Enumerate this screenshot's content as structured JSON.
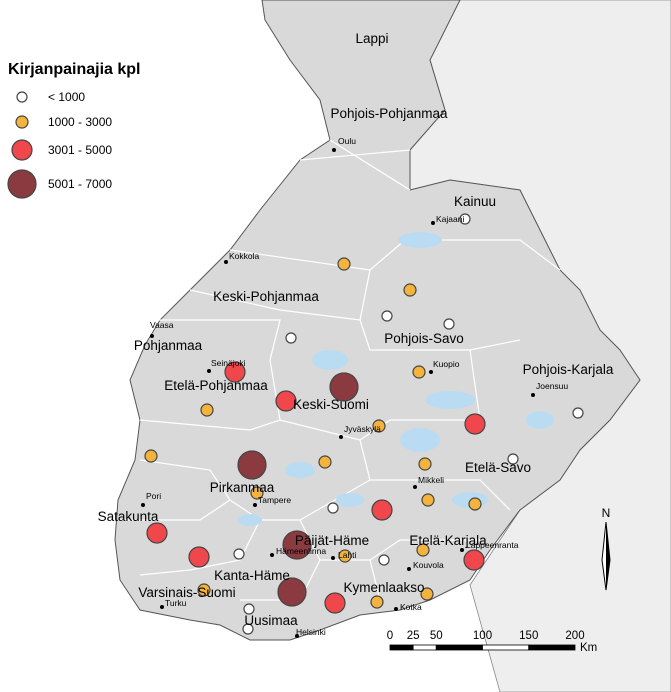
{
  "legend": {
    "title": "Kirjanpainajia kpl",
    "items": [
      "< 1000",
      "1000 - 3000",
      "3001 - 5000",
      "5001 - 7000"
    ]
  },
  "regions": [
    "Lappi",
    "Pohjois-Pohjanmaa",
    "Kainuu",
    "Keski-Pohjanmaa",
    "Pohjois-Savo",
    "Pohjanmaa",
    "Pohjois-Karjala",
    "Etelä-Pohjanmaa",
    "Keski-Suomi",
    "Etelä-Savo",
    "Pirkanmaa",
    "Satakunta",
    "Päijät-Häme",
    "Etelä-Karjala",
    "Kanta-Häme",
    "Kymenlaakso",
    "Varsinais-Suomi",
    "Uusimaa"
  ],
  "cities": [
    "Oulu",
    "Kajaani",
    "Kokkola",
    "Vaasa",
    "Seinäjoki",
    "Kuopio",
    "Joensuu",
    "Jyväskylä",
    "Pori",
    "Tampere",
    "Mikkeli",
    "Hämeenlinna",
    "Lahti",
    "Kouvola",
    "Lappeenranta",
    "Turku",
    "Kotka",
    "Helsinki"
  ],
  "scale_bar": {
    "ticks": [
      0,
      25,
      50,
      100,
      150,
      200
    ],
    "unit": "Km"
  },
  "north_arrow": "N"
}
